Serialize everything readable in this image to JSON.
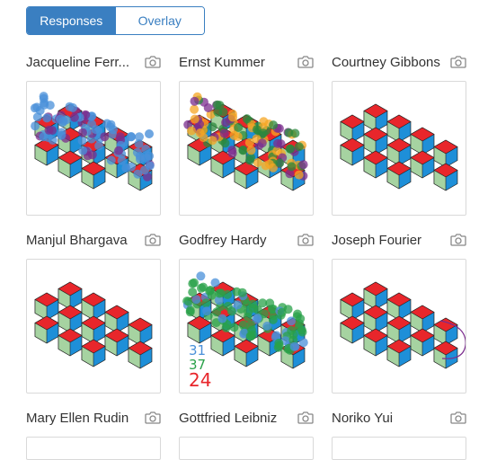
{
  "tabs": [
    {
      "label": "Responses",
      "active": true
    },
    {
      "label": "Overlay",
      "active": false
    }
  ],
  "colors": {
    "accent": "#3a7fc1",
    "tile_red": "#e8262b",
    "tile_blue": "#1e8fd8",
    "tile_green": "#a6d3a1",
    "dot_blue": "#4a90d9",
    "dot_purple": "#7b2d8e",
    "dot_orange": "#f5a623",
    "dot_green": "#2aa14a"
  },
  "cards": [
    {
      "name": "Jacqueline Ferr...",
      "variant": "blue-dots"
    },
    {
      "name": "Ernst Kummer",
      "variant": "orange-purple-dots"
    },
    {
      "name": "Courtney Gibbons",
      "variant": "clean"
    },
    {
      "name": "Manjul Bhargava",
      "variant": "clean"
    },
    {
      "name": "Godfrey Hardy",
      "variant": "green-dots",
      "numbers": [
        {
          "text": "31",
          "color": "#4a90d9"
        },
        {
          "text": "37",
          "color": "#2aa14a"
        },
        {
          "text": "24",
          "color": "#e8262b"
        }
      ]
    },
    {
      "name": "Joseph Fourier",
      "variant": "clean-arc"
    },
    {
      "name": "Mary Ellen Rudin",
      "variant": "empty"
    },
    {
      "name": "Gottfried Leibniz",
      "variant": "empty"
    },
    {
      "name": "Noriko Yui",
      "variant": "empty"
    }
  ]
}
